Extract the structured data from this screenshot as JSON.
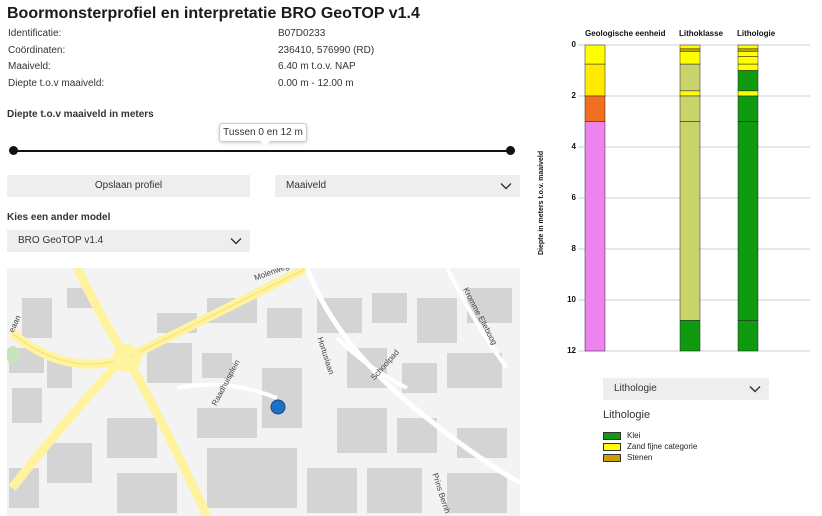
{
  "header": {
    "title": "Boormonsterprofiel en interpretatie BRO GeoTOP v1.4"
  },
  "info": [
    {
      "key": "Identificatie:",
      "value": "B07D0233"
    },
    {
      "key": "Coördinaten:",
      "value": "236410, 576990 (RD)"
    },
    {
      "key": "Maaiveld:",
      "value": "6.40 m t.o.v. NAP"
    },
    {
      "key": "Diepte t.o.v maaiveld:",
      "value": "0.00 m - 12.00 m"
    }
  ],
  "depth_slider": {
    "label": "Diepte t.o.v maaiveld in meters",
    "tooltip": "Tussen 0 en 12 m",
    "range_m": [
      0,
      12
    ]
  },
  "actions": {
    "save_label": "Opslaan profiel",
    "reference_select": "Maaiveld"
  },
  "model": {
    "label": "Kies een ander model",
    "selected": "BRO GeoTOP v1.4"
  },
  "map": {
    "streets": [
      "Molenweg",
      "Raadhuisplein",
      "Hortuslaan",
      "Schoolpad",
      "Kromme Elleboog",
      "Prins Bernh",
      "eaan"
    ],
    "marker_color": "#1f6fc2"
  },
  "chart_data": {
    "type": "table",
    "ylabel": "Diepte in meters t.o.v. maaiveld",
    "y_ticks": [
      0,
      2,
      4,
      6,
      8,
      10,
      12
    ],
    "ylim": [
      0,
      12
    ],
    "columns": [
      {
        "title": "Geologische eenheid",
        "layers": [
          {
            "top": 0,
            "bottom": 0.75,
            "color": "#ffff00"
          },
          {
            "top": 0.75,
            "bottom": 2.0,
            "color": "#ffea00"
          },
          {
            "top": 2.0,
            "bottom": 3.0,
            "color": "#f07020"
          },
          {
            "top": 3.0,
            "bottom": 12.0,
            "color": "#ee82ee"
          }
        ]
      },
      {
        "title": "Lithoklasse",
        "layers": [
          {
            "top": 0,
            "bottom": 0.15,
            "color": "#ffff00"
          },
          {
            "top": 0.15,
            "bottom": 0.25,
            "color": "#c8a000"
          },
          {
            "top": 0.25,
            "bottom": 0.75,
            "color": "#ffff00"
          },
          {
            "top": 0.75,
            "bottom": 1.8,
            "color": "#c8d46a"
          },
          {
            "top": 1.8,
            "bottom": 2.0,
            "color": "#ffff00"
          },
          {
            "top": 2.0,
            "bottom": 3.0,
            "color": "#c8d46a"
          },
          {
            "top": 3.0,
            "bottom": 10.8,
            "color": "#c8d46a"
          },
          {
            "top": 10.8,
            "bottom": 12.0,
            "color": "#109a10"
          }
        ]
      },
      {
        "title": "Lithologie",
        "layers": [
          {
            "top": 0,
            "bottom": 0.15,
            "color": "#ffff00"
          },
          {
            "top": 0.15,
            "bottom": 0.25,
            "color": "#c8a000"
          },
          {
            "top": 0.25,
            "bottom": 0.45,
            "color": "#ffff00"
          },
          {
            "top": 0.45,
            "bottom": 0.75,
            "color": "#ffff00"
          },
          {
            "top": 0.75,
            "bottom": 1.0,
            "color": "#ffff00"
          },
          {
            "top": 1.0,
            "bottom": 1.8,
            "color": "#109a10"
          },
          {
            "top": 1.8,
            "bottom": 2.0,
            "color": "#ffff00"
          },
          {
            "top": 2.0,
            "bottom": 3.0,
            "color": "#109a10"
          },
          {
            "top": 3.0,
            "bottom": 10.8,
            "color": "#109a10"
          },
          {
            "top": 10.8,
            "bottom": 12.0,
            "color": "#109a10"
          }
        ]
      }
    ]
  },
  "legend": {
    "select": "Lithologie",
    "title": "Lithologie",
    "items": [
      {
        "label": "Klei",
        "color": "#109a10"
      },
      {
        "label": "Zand fijne categorie",
        "color": "#ffff00"
      },
      {
        "label": "Stenen",
        "color": "#c8a000"
      }
    ]
  }
}
